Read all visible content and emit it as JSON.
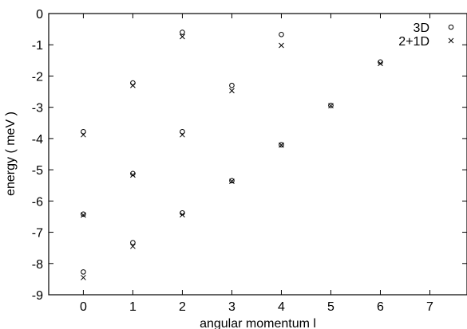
{
  "chart_data": {
    "type": "scatter",
    "xlabel": "angular momentum   l",
    "ylabel": "energy ( meV )",
    "xlim": [
      -0.7,
      7.75
    ],
    "ylim": [
      -9,
      0
    ],
    "grid": false,
    "legend_position": "top-right",
    "xticks": [
      "0",
      "1",
      "2",
      "3",
      "4",
      "5",
      "6",
      "7"
    ],
    "yticks": [
      "0",
      "-1",
      "-2",
      "-3",
      "-4",
      "-5",
      "-6",
      "-7",
      "-8",
      "-9"
    ],
    "series": [
      {
        "name": "3D",
        "marker": "circle",
        "points": [
          {
            "x": 0,
            "y": -8.27
          },
          {
            "x": 0,
            "y": -6.42
          },
          {
            "x": 0,
            "y": -3.78
          },
          {
            "x": 1,
            "y": -7.33
          },
          {
            "x": 1,
            "y": -5.12
          },
          {
            "x": 1,
            "y": -2.22
          },
          {
            "x": 2,
            "y": -6.38
          },
          {
            "x": 2,
            "y": -3.78
          },
          {
            "x": 2,
            "y": -0.6
          },
          {
            "x": 3,
            "y": -5.35
          },
          {
            "x": 3,
            "y": -2.3
          },
          {
            "x": 4,
            "y": -4.2
          },
          {
            "x": 4,
            "y": -0.67
          },
          {
            "x": 5,
            "y": -2.94
          },
          {
            "x": 6,
            "y": -1.55
          }
        ]
      },
      {
        "name": "2+1D",
        "marker": "cross",
        "points": [
          {
            "x": 0,
            "y": -8.45
          },
          {
            "x": 0,
            "y": -6.45
          },
          {
            "x": 0,
            "y": -3.88
          },
          {
            "x": 1,
            "y": -7.45
          },
          {
            "x": 1,
            "y": -5.17
          },
          {
            "x": 1,
            "y": -2.3
          },
          {
            "x": 2,
            "y": -6.44
          },
          {
            "x": 2,
            "y": -3.88
          },
          {
            "x": 2,
            "y": -0.74
          },
          {
            "x": 3,
            "y": -5.37
          },
          {
            "x": 3,
            "y": -2.47
          },
          {
            "x": 4,
            "y": -4.21
          },
          {
            "x": 4,
            "y": -1.02
          },
          {
            "x": 5,
            "y": -2.95
          },
          {
            "x": 6,
            "y": -1.6
          }
        ]
      }
    ]
  }
}
